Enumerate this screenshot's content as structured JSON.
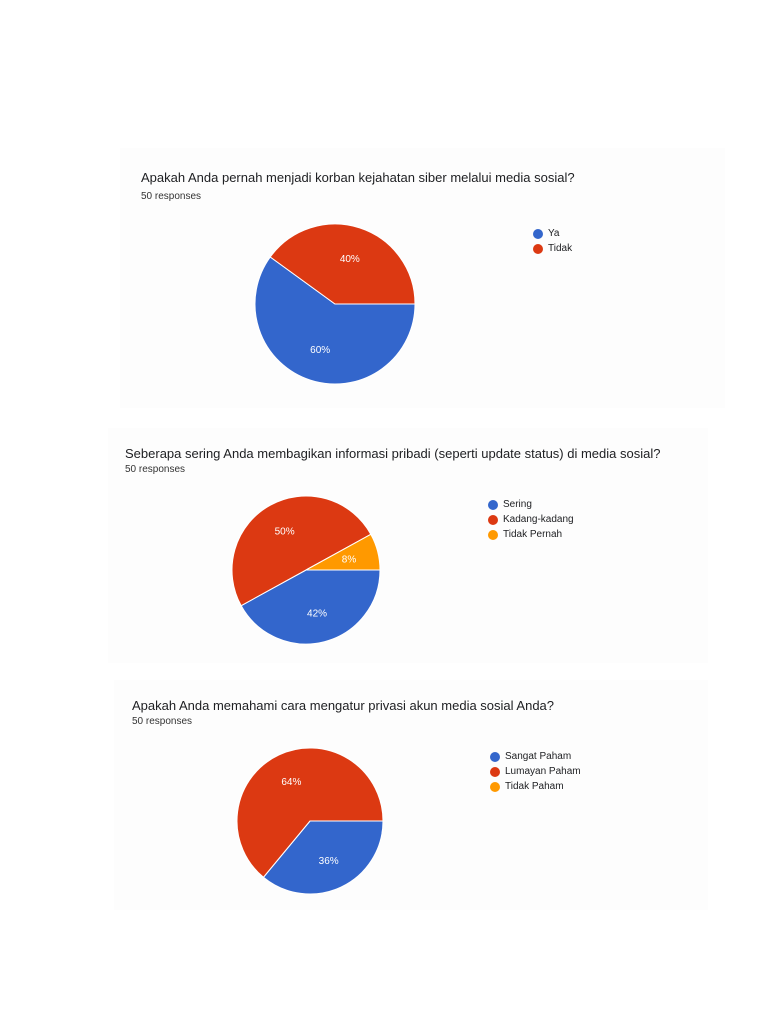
{
  "charts": [
    {
      "title": "Apakah Anda pernah menjadi korban kejahatan siber melalui media sosial?",
      "subtitle": "50 responses"
    },
    {
      "title": "Seberapa sering Anda membagikan informasi pribadi (seperti update status) di media sosial?",
      "subtitle": "50 responses"
    },
    {
      "title": "Apakah Anda memahami cara mengatur privasi akun media sosial Anda?",
      "subtitle": "50 responses"
    }
  ],
  "chart_data": [
    {
      "type": "pie",
      "title": "Apakah Anda pernah menjadi korban kejahatan siber melalui media sosial?",
      "subtitle": "50 responses",
      "legend_position": "right",
      "slices": [
        {
          "label": "Ya",
          "value": 60,
          "display": "60%",
          "color": "#3366cc"
        },
        {
          "label": "Tidak",
          "value": 40,
          "display": "40%",
          "color": "#dc3912"
        }
      ]
    },
    {
      "type": "pie",
      "title": "Seberapa sering Anda membagikan informasi pribadi (seperti update status) di media sosial?",
      "subtitle": "50 responses",
      "legend_position": "right",
      "slices": [
        {
          "label": "Sering",
          "value": 42,
          "display": "42%",
          "color": "#3366cc"
        },
        {
          "label": "Kadang-kadang",
          "value": 50,
          "display": "50%",
          "color": "#dc3912"
        },
        {
          "label": "Tidak Pernah",
          "value": 8,
          "display": "8%",
          "color": "#ff9900"
        }
      ]
    },
    {
      "type": "pie",
      "title": "Apakah Anda memahami cara mengatur privasi akun media sosial Anda?",
      "subtitle": "50 responses",
      "legend_position": "right",
      "slices": [
        {
          "label": "Sangat Paham",
          "value": 36,
          "display": "36%",
          "color": "#3366cc"
        },
        {
          "label": "Lumayan Paham",
          "value": 64,
          "display": "64%",
          "color": "#dc3912"
        },
        {
          "label": "Tidak Paham",
          "value": 0,
          "display": "",
          "color": "#ff9900"
        }
      ]
    }
  ]
}
